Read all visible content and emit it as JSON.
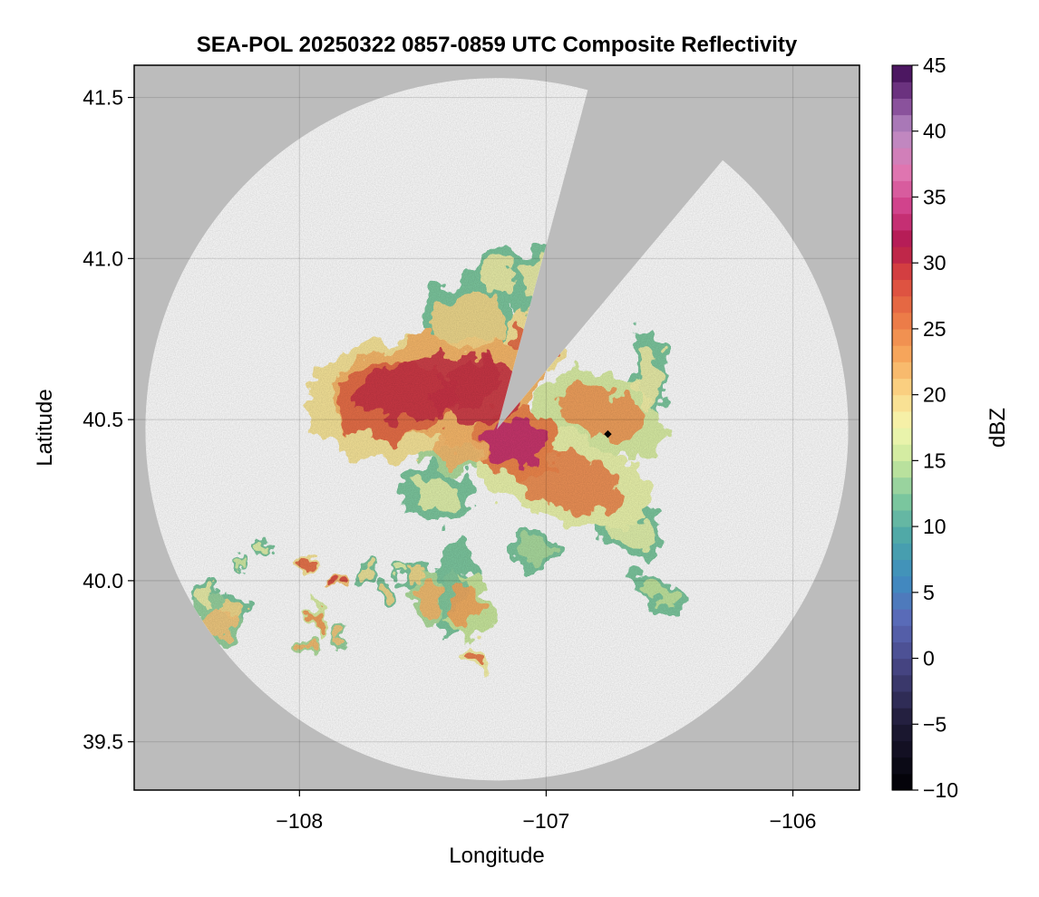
{
  "chart_data": {
    "type": "heatmap",
    "title": "SEA-POL 20250322 0857-0859 UTC Composite Reflectivity",
    "xlabel": "Longitude",
    "ylabel": "Latitude",
    "xlim": [
      -108.67,
      -105.73
    ],
    "ylim": [
      39.35,
      41.6
    ],
    "xticks": [
      -108,
      -107,
      -106
    ],
    "yticks": [
      39.5,
      40.0,
      40.5,
      41.0,
      41.5
    ],
    "xtick_labels": [
      "−108",
      "−107",
      "−106"
    ],
    "ytick_labels": [
      "39.5",
      "40.0",
      "40.5",
      "41.0",
      "41.5"
    ],
    "grid": true,
    "background_color": "#bcbcbc",
    "no_data_color": "#ffffff",
    "radar": {
      "center_lon": -107.2,
      "center_lat": 40.47,
      "range_deg_lat": 1.09,
      "blocked_sectors_deg_cw_from_north": [
        [
          15,
          40
        ]
      ]
    },
    "marker": {
      "lon": -106.75,
      "lat": 40.455,
      "color": "#000000"
    },
    "colorbar": {
      "label": "dBZ",
      "min": -10,
      "max": 45,
      "ticks": [
        -10,
        -5,
        0,
        5,
        10,
        15,
        20,
        25,
        30,
        35,
        40,
        45
      ],
      "tick_labels": [
        "−10",
        "−5",
        "0",
        "5",
        "10",
        "15",
        "20",
        "25",
        "30",
        "35",
        "40",
        "45"
      ],
      "colormap": "spectral-reversed-to-purple",
      "stops": [
        [
          -10,
          "#000004"
        ],
        [
          -5,
          "#1e1a35"
        ],
        [
          0,
          "#4a4a8c"
        ],
        [
          3,
          "#5a6ab8"
        ],
        [
          6,
          "#3f8cc0"
        ],
        [
          9,
          "#4aa5a8"
        ],
        [
          12,
          "#7cc79e"
        ],
        [
          15,
          "#c9e89d"
        ],
        [
          17.5,
          "#f4f7b0"
        ],
        [
          20,
          "#fbd98a"
        ],
        [
          23,
          "#f6a75c"
        ],
        [
          26,
          "#ea7645"
        ],
        [
          29,
          "#d9453f"
        ],
        [
          31.5,
          "#b1174f"
        ],
        [
          34,
          "#cf3c86"
        ],
        [
          37,
          "#e077b2"
        ],
        [
          40,
          "#b98bc4"
        ],
        [
          42.5,
          "#7a3f8e"
        ],
        [
          45,
          "#3d0a52"
        ]
      ]
    },
    "echoes": [
      {
        "lon": -107.47,
        "lat": 40.6,
        "r_lon": 0.36,
        "r_lat": 0.12,
        "rot": -10,
        "dbz": 30
      },
      {
        "lon": -107.62,
        "lat": 40.56,
        "r_lon": 0.3,
        "r_lat": 0.15,
        "rot": -5,
        "dbz": 27
      },
      {
        "lon": -107.28,
        "lat": 40.58,
        "r_lon": 0.22,
        "r_lat": 0.12,
        "rot": -20,
        "dbz": 30
      },
      {
        "lon": -107.05,
        "lat": 40.74,
        "r_lon": 0.1,
        "r_lat": 0.07,
        "rot": 0,
        "dbz": 27
      },
      {
        "lon": -106.93,
        "lat": 40.32,
        "r_lon": 0.32,
        "r_lat": 0.11,
        "rot": 18,
        "dbz": 25
      },
      {
        "lon": -106.78,
        "lat": 40.52,
        "r_lon": 0.22,
        "r_lat": 0.1,
        "rot": 20,
        "dbz": 24
      },
      {
        "lon": -107.12,
        "lat": 40.43,
        "r_lon": 0.15,
        "r_lat": 0.09,
        "rot": 10,
        "dbz": 33
      },
      {
        "lon": -107.35,
        "lat": 40.41,
        "r_lon": 0.14,
        "r_lat": 0.06,
        "rot": 0,
        "dbz": 22
      },
      {
        "lon": -107.3,
        "lat": 40.8,
        "r_lon": 0.17,
        "r_lat": 0.12,
        "rot": 0,
        "dbz": 20
      },
      {
        "lon": -107.02,
        "lat": 40.92,
        "r_lon": 0.09,
        "r_lat": 0.1,
        "rot": 0,
        "dbz": 18
      },
      {
        "lon": -107.2,
        "lat": 40.95,
        "r_lon": 0.09,
        "r_lat": 0.07,
        "rot": 0,
        "dbz": 18
      },
      {
        "lon": -107.45,
        "lat": 40.27,
        "r_lon": 0.12,
        "r_lat": 0.07,
        "rot": 0,
        "dbz": 17
      },
      {
        "lon": -106.66,
        "lat": 40.15,
        "r_lon": 0.12,
        "r_lat": 0.06,
        "rot": 20,
        "dbz": 17
      },
      {
        "lon": -106.58,
        "lat": 40.62,
        "r_lon": 0.06,
        "r_lat": 0.14,
        "rot": 0,
        "dbz": 18
      },
      {
        "lon": -106.55,
        "lat": 39.96,
        "r_lon": 0.1,
        "r_lat": 0.03,
        "rot": 25,
        "dbz": 15
      },
      {
        "lon": -107.05,
        "lat": 40.1,
        "r_lon": 0.08,
        "r_lat": 0.05,
        "rot": 0,
        "dbz": 14
      },
      {
        "lon": -107.38,
        "lat": 39.99,
        "r_lon": 0.06,
        "r_lat": 0.13,
        "rot": 10,
        "dbz": 12
      },
      {
        "lon": -107.32,
        "lat": 39.92,
        "r_lon": 0.08,
        "r_lat": 0.09,
        "rot": 0,
        "dbz": 23
      },
      {
        "lon": -107.47,
        "lat": 39.95,
        "r_lon": 0.06,
        "r_lat": 0.06,
        "rot": 0,
        "dbz": 22
      },
      {
        "lon": -107.53,
        "lat": 40.02,
        "r_lon": 0.05,
        "r_lat": 0.04,
        "rot": 0,
        "dbz": 20
      },
      {
        "lon": -107.27,
        "lat": 39.76,
        "r_lon": 0.04,
        "r_lat": 0.03,
        "rot": 0,
        "dbz": 26
      },
      {
        "lon": -108.34,
        "lat": 39.87,
        "r_lon": 0.09,
        "r_lat": 0.06,
        "rot": 0,
        "dbz": 21
      },
      {
        "lon": -108.38,
        "lat": 39.95,
        "r_lon": 0.04,
        "r_lat": 0.03,
        "rot": 0,
        "dbz": 18
      },
      {
        "lon": -108.27,
        "lat": 39.91,
        "r_lon": 0.05,
        "r_lat": 0.04,
        "rot": 0,
        "dbz": 20
      },
      {
        "lon": -107.92,
        "lat": 39.88,
        "r_lon": 0.03,
        "r_lat": 0.05,
        "rot": 0,
        "dbz": 24
      },
      {
        "lon": -107.96,
        "lat": 39.79,
        "r_lon": 0.04,
        "r_lat": 0.02,
        "rot": 0,
        "dbz": 22
      },
      {
        "lon": -107.98,
        "lat": 40.06,
        "r_lon": 0.04,
        "r_lat": 0.02,
        "rot": 0,
        "dbz": 27
      },
      {
        "lon": -107.85,
        "lat": 40.01,
        "r_lon": 0.03,
        "r_lat": 0.02,
        "rot": 0,
        "dbz": 29
      },
      {
        "lon": -107.73,
        "lat": 40.02,
        "r_lon": 0.04,
        "r_lat": 0.03,
        "rot": 0,
        "dbz": 19
      },
      {
        "lon": -107.6,
        "lat": 40.04,
        "r_lon": 0.03,
        "r_lat": 0.02,
        "rot": 0,
        "dbz": 17
      },
      {
        "lon": -107.65,
        "lat": 39.97,
        "r_lon": 0.04,
        "r_lat": 0.03,
        "rot": 0,
        "dbz": 20
      },
      {
        "lon": -108.15,
        "lat": 40.1,
        "r_lon": 0.03,
        "r_lat": 0.02,
        "rot": 0,
        "dbz": 17
      },
      {
        "lon": -108.24,
        "lat": 40.05,
        "r_lon": 0.02,
        "r_lat": 0.02,
        "rot": 0,
        "dbz": 16
      },
      {
        "lon": -107.83,
        "lat": 39.83,
        "r_lon": 0.03,
        "r_lat": 0.03,
        "rot": 0,
        "dbz": 21
      }
    ]
  }
}
